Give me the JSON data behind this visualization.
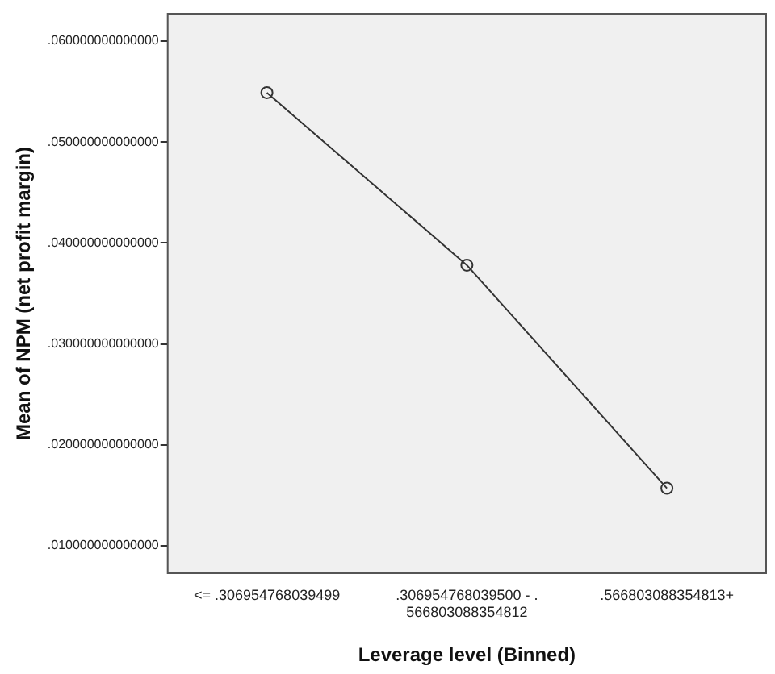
{
  "chart_data": {
    "type": "line",
    "xlabel": "Leverage level (Binned)",
    "ylabel": "Mean of NPM (net profit margin)",
    "categories": [
      "<= .306954768039499",
      ".306954768039500 - .566803088354812",
      ".566803088354813+"
    ],
    "series": [
      {
        "color": "#333333",
        "values": [
          0.0549,
          0.0378,
          0.0157
        ]
      }
    ],
    "ylim": [
      0.0072,
      0.0628
    ],
    "yticks": [
      {
        "value": 0.01,
        "label": ".010000000000000"
      },
      {
        "value": 0.02,
        "label": ".020000000000000"
      },
      {
        "value": 0.03,
        "label": ".030000000000000"
      },
      {
        "value": 0.04,
        "label": ".040000000000000"
      },
      {
        "value": 0.05,
        "label": ".050000000000000"
      },
      {
        "value": 0.06,
        "label": ".060000000000000"
      }
    ],
    "grid": false,
    "legend": false,
    "marker": "circle",
    "line_style": "solid"
  }
}
